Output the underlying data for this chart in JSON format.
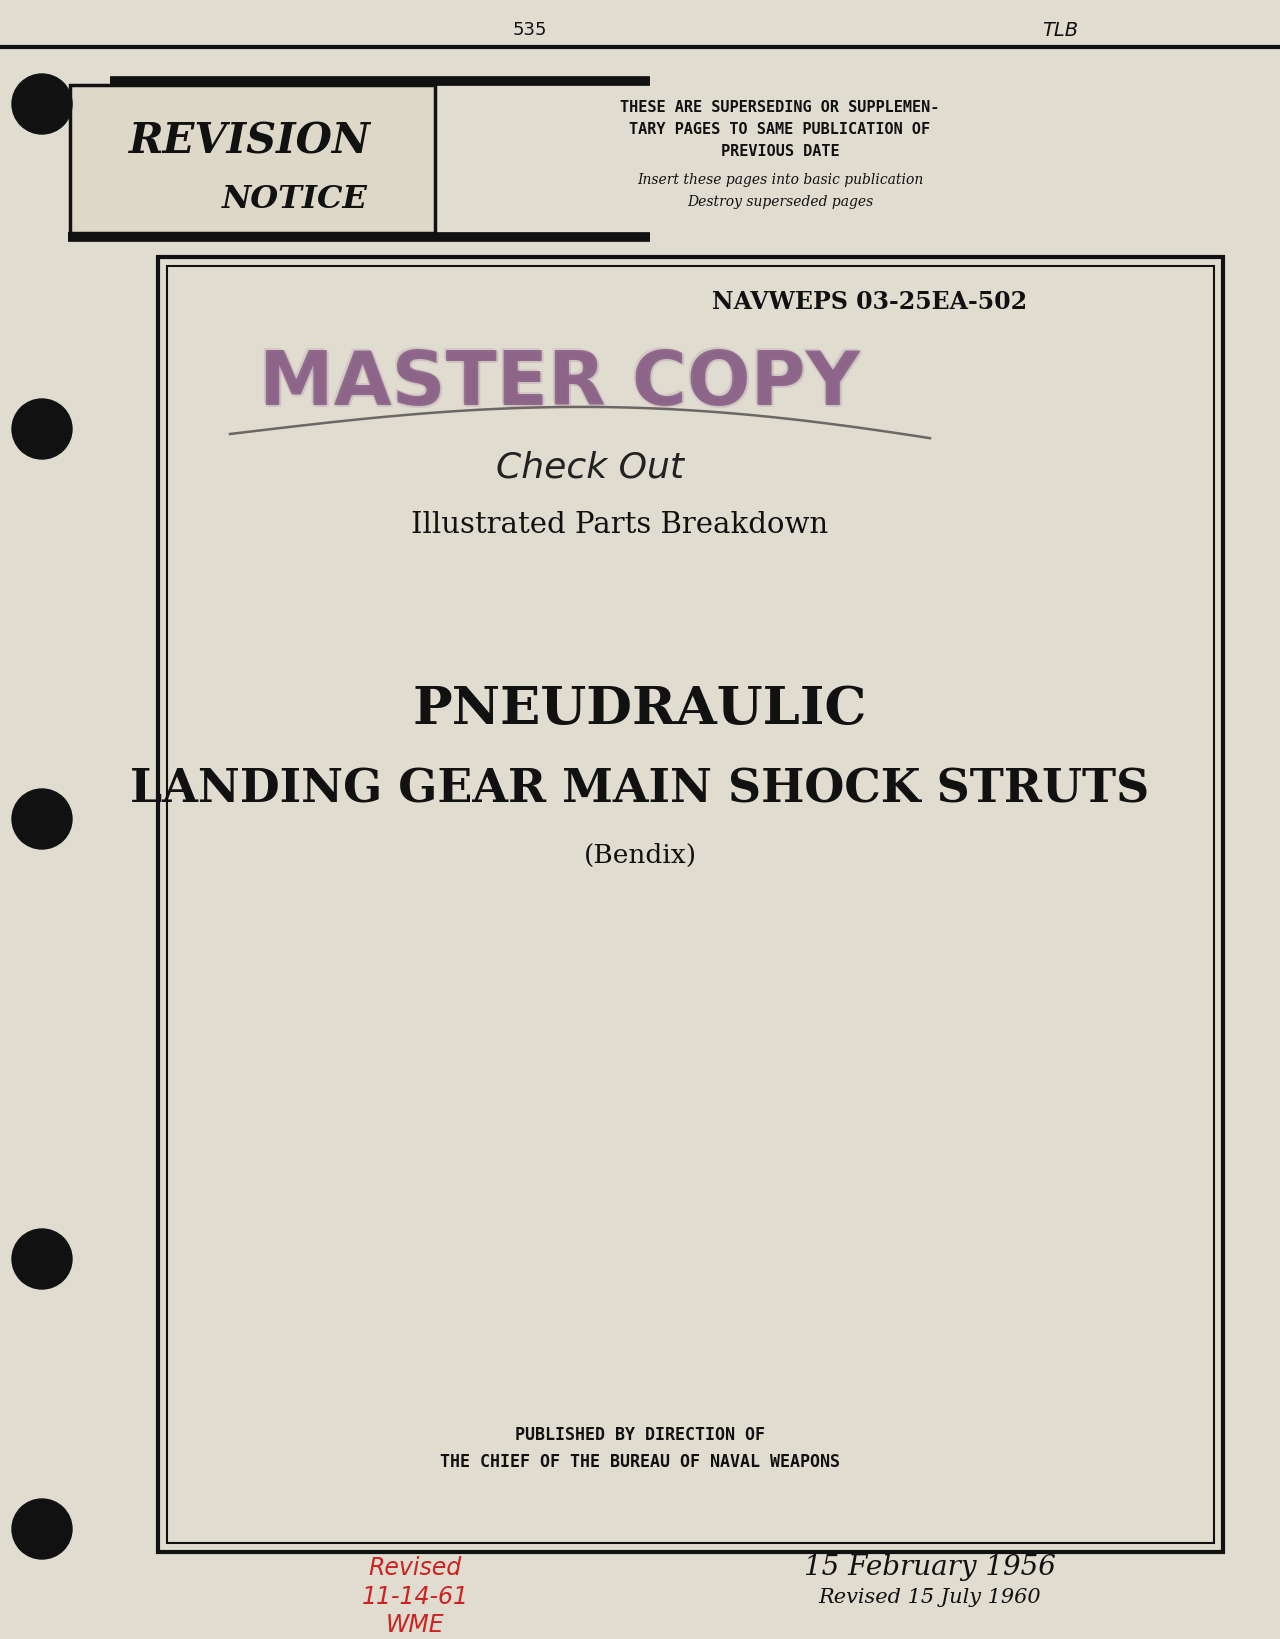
{
  "bg_color": "#e0dcd0",
  "text_color": "#1a1a1a",
  "stamp_color": "#7a4a7a",
  "red_color": "#cc2222",
  "header_right_line1": "THESE ARE SUPERSEDING OR SUPPLEMEN-",
  "header_right_line2": "TARY PAGES TO SAME PUBLICATION OF",
  "header_right_line3": "PREVIOUS DATE",
  "header_right_line4": "Insert these pages into basic publication",
  "header_right_line5": "Destroy superseded pages",
  "doc_number": "NAVWEPS 03-25EA-502",
  "stamp_line1": "MASTER COPY",
  "handwrite1": "Check Out",
  "subtitle": "Illustrated Parts Breakdown",
  "main_title_line1": "PNEUDRAULIC",
  "main_title_line2": "LANDING GEAR MAIN SHOCK STRUTS",
  "main_title_line3": "(Bendix)",
  "publisher_line1": "PUBLISHED BY DIRECTION OF",
  "publisher_line2": "THE CHIEF OF THE BUREAU OF NAVAL WEAPONS",
  "date_main": "15 February 1956",
  "date_revised": "Revised 15 July 1960",
  "handwrite_revised_line1": "Revised",
  "handwrite_revised_line2": "11-14-61",
  "handwrite_revised_line3": "WME",
  "corner_top_right": "TLB",
  "corner_top_mid": "535"
}
